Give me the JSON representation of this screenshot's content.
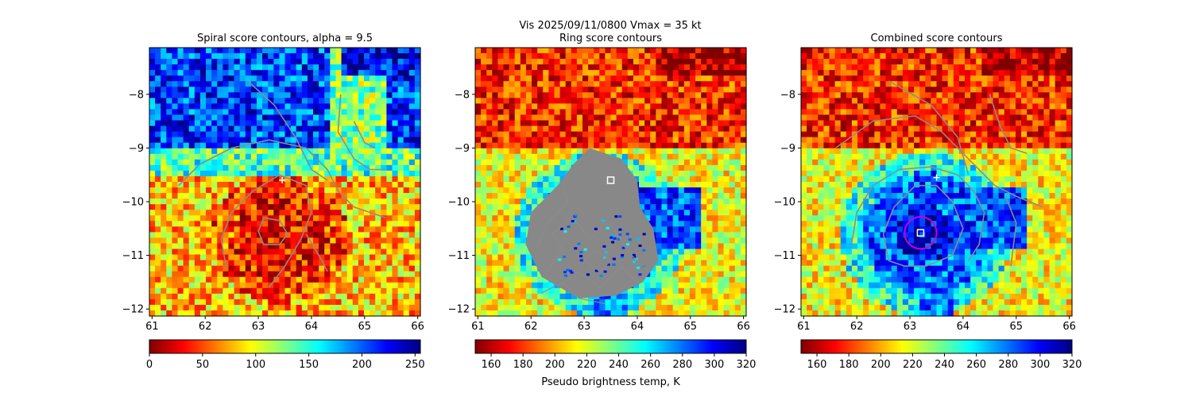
{
  "figure": {
    "suptitle_line1": "Vis  2025/09/11/0800    Vmax = 35 kt",
    "colorbar_label": "Pseudo brightness temp, K"
  },
  "chart_data": [
    {
      "type": "heatmap",
      "title": "Spiral score contours, alpha =  9.5",
      "xlabel": "",
      "ylabel": "",
      "xlim": [
        60.95,
        66.05
      ],
      "ylim": [
        -12.13,
        -7.13
      ],
      "xticks": [
        61,
        62,
        63,
        64,
        65,
        66
      ],
      "yticks": [
        -8,
        -9,
        -10,
        -11,
        -12
      ],
      "grid": false,
      "colormap": "jet_r",
      "colorbar": {
        "range": [
          0,
          255
        ],
        "ticks": [
          0,
          50,
          100,
          150,
          200,
          250
        ]
      },
      "contour_color": "#8c8c8c",
      "markers": [
        {
          "kind": "plus",
          "lon": 63.45,
          "lat": -9.6,
          "color": "#ffffff"
        }
      ]
    },
    {
      "type": "heatmap",
      "title": "Ring score contours",
      "xlabel": "",
      "ylabel": "",
      "xlim": [
        60.95,
        66.05
      ],
      "ylim": [
        -12.13,
        -7.13
      ],
      "xticks": [
        61,
        62,
        63,
        64,
        65,
        66
      ],
      "yticks": [
        -8,
        -9,
        -10,
        -11,
        -12
      ],
      "grid": false,
      "colormap": "jet_r",
      "colorbar": {
        "range": [
          150,
          320
        ],
        "ticks": [
          160,
          180,
          200,
          220,
          240,
          260,
          280,
          300,
          320
        ]
      },
      "contour_color": "#8c8c8c",
      "masked_region_color": "#888888",
      "markers": [
        {
          "kind": "square",
          "lon": 63.5,
          "lat": -9.6,
          "color": "#ffffff"
        }
      ]
    },
    {
      "type": "heatmap",
      "title": "Combined score contours",
      "xlabel": "",
      "ylabel": "",
      "xlim": [
        60.95,
        66.05
      ],
      "ylim": [
        -12.13,
        -7.13
      ],
      "xticks": [
        61,
        62,
        63,
        64,
        65,
        66
      ],
      "yticks": [
        -8,
        -9,
        -10,
        -11,
        -12
      ],
      "grid": false,
      "colormap": "jet_r",
      "colorbar": {
        "range": [
          150,
          320
        ],
        "ticks": [
          160,
          180,
          200,
          220,
          240,
          260,
          280,
          300,
          320
        ]
      },
      "contour_color": "#8c8c8c",
      "markers": [
        {
          "kind": "plus",
          "lon": 63.5,
          "lat": -9.55,
          "color": "#ffffff"
        },
        {
          "kind": "square",
          "lon": 63.2,
          "lat": -10.58,
          "color": "#ffffff"
        },
        {
          "kind": "circle",
          "lon": 63.2,
          "lat": -10.58,
          "radius_deg": 0.3,
          "color": "#cc00cc"
        }
      ]
    }
  ]
}
